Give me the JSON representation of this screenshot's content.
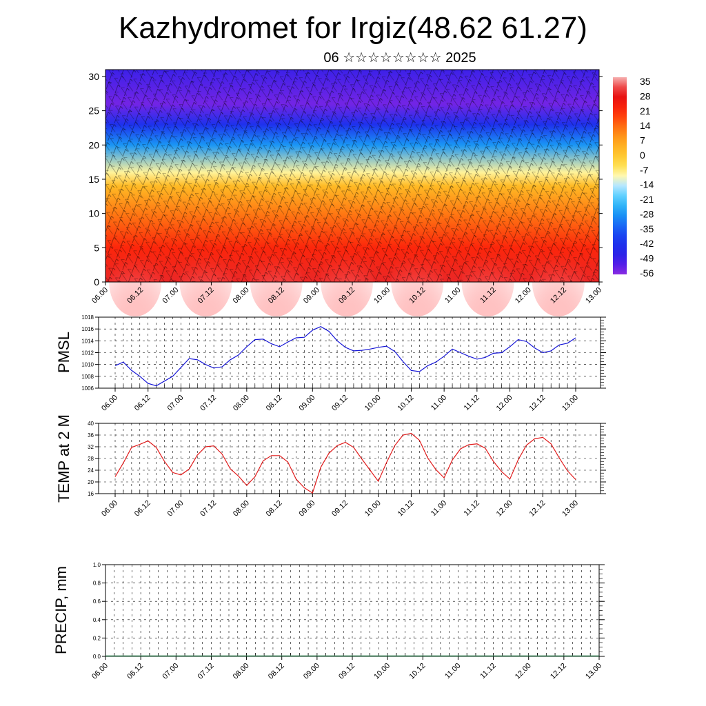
{
  "header": {
    "title": "Kazhydromet for Irgiz(48.62 61.27)",
    "subtitle": "06 ☆☆☆☆☆☆☆☆ 2025"
  },
  "chart_data": [
    {
      "type": "heatmap",
      "title": "",
      "xlabel": "",
      "ylabel": "",
      "x_ticks": [
        "06.00",
        "06.12",
        "07.00",
        "07.12",
        "08.00",
        "08.12",
        "09.00",
        "09.12",
        "10.00",
        "10.12",
        "11.00",
        "11.12",
        "12.00",
        "12.12",
        "13.00"
      ],
      "y_ticks": [
        0,
        5,
        10,
        15,
        20,
        25,
        30
      ],
      "ylim": [
        0,
        31
      ],
      "colorbar_labels": [
        "35",
        "28",
        "21",
        "14",
        "7",
        "0",
        "-7",
        "-14",
        "-21",
        "-28",
        "-35",
        "-42",
        "-49",
        "-56"
      ],
      "colorbar_range": [
        -60,
        38
      ],
      "temperature_profile": [
        {
          "level": 0,
          "value": 30
        },
        {
          "level": 5,
          "value": 22
        },
        {
          "level": 10,
          "value": 12
        },
        {
          "level": 14,
          "value": 2
        },
        {
          "level": 16,
          "value": -10
        },
        {
          "level": 20,
          "value": -30
        },
        {
          "level": 23,
          "value": -45
        },
        {
          "level": 26,
          "value": -58
        },
        {
          "level": 31,
          "value": -52
        }
      ],
      "overlay": "wind barbs"
    },
    {
      "type": "line",
      "ylabel": "PMSL",
      "ylim": [
        1006,
        1018
      ],
      "y_ticks": [
        1006,
        1008,
        1010,
        1012,
        1014,
        1016,
        1018
      ],
      "x_ticks": [
        "06.00",
        "06.12",
        "07.00",
        "07.12",
        "08.00",
        "08.12",
        "09.00",
        "09.12",
        "10.00",
        "10.12",
        "11.00",
        "11.12",
        "12.00",
        "12.12",
        "13.00"
      ],
      "color": "#1515d6",
      "values": [
        1009.8,
        1010.4,
        1009.0,
        1008.0,
        1006.8,
        1006.4,
        1007.2,
        1008.0,
        1009.5,
        1011.0,
        1010.8,
        1010.0,
        1009.4,
        1009.6,
        1010.8,
        1011.6,
        1013.0,
        1014.2,
        1014.3,
        1013.5,
        1013.0,
        1013.8,
        1014.5,
        1014.6,
        1015.8,
        1016.4,
        1015.6,
        1014.0,
        1012.9,
        1012.3,
        1012.4,
        1012.6,
        1012.9,
        1013.1,
        1012.2,
        1010.5,
        1009.0,
        1008.8,
        1009.8,
        1010.4,
        1011.4,
        1012.6,
        1012.0,
        1011.4,
        1010.9,
        1011.2,
        1011.9,
        1012.0,
        1013.0,
        1014.2,
        1013.9,
        1012.8,
        1012.0,
        1012.3,
        1013.3,
        1013.6,
        1014.5
      ]
    },
    {
      "type": "line",
      "ylabel": "TEMP at 2 M",
      "ylim": [
        16,
        40
      ],
      "y_ticks": [
        16,
        20,
        24,
        28,
        32,
        36,
        40
      ],
      "x_ticks": [
        "06.00",
        "06.12",
        "07.00",
        "07.12",
        "08.00",
        "08.12",
        "09.00",
        "09.12",
        "10.00",
        "10.12",
        "11.00",
        "11.12",
        "12.00",
        "12.12",
        "13.00"
      ],
      "color": "#e01b1b",
      "values": [
        21.8,
        26.5,
        31.8,
        32.8,
        34.0,
        31.8,
        27.0,
        23.2,
        22.4,
        24.4,
        29.2,
        32.0,
        32.3,
        29.5,
        24.5,
        22.0,
        18.8,
        21.8,
        27.2,
        29.0,
        29.0,
        26.8,
        21.0,
        18.0,
        16.2,
        25.0,
        29.8,
        32.4,
        33.5,
        31.8,
        27.8,
        24.0,
        20.2,
        26.6,
        32.4,
        36.0,
        36.6,
        34.2,
        28.2,
        24.2,
        21.4,
        27.5,
        31.3,
        32.7,
        33.0,
        31.5,
        27.0,
        23.5,
        21.0,
        27.5,
        32.5,
        34.7,
        35.2,
        33.0,
        28.2,
        23.8,
        20.8
      ]
    },
    {
      "type": "bar",
      "ylabel": "PRECIP, mm",
      "ylim": [
        0,
        1.0
      ],
      "y_ticks": [
        "0.0",
        "0.2",
        "0.4",
        "0.6",
        "0.8",
        "1.0"
      ],
      "x_ticks": [
        "06.00",
        "06.12",
        "07.00",
        "07.12",
        "08.00",
        "08.12",
        "09.00",
        "09.12",
        "10.00",
        "10.12",
        "11.00",
        "11.12",
        "12.00",
        "12.12",
        "13.00"
      ],
      "values": [
        0,
        0,
        0,
        0,
        0,
        0,
        0,
        0,
        0,
        0,
        0,
        0,
        0,
        0,
        0,
        0,
        0,
        0,
        0,
        0,
        0,
        0,
        0,
        0,
        0,
        0,
        0,
        0,
        0,
        0,
        0,
        0,
        0,
        0,
        0,
        0,
        0,
        0,
        0,
        0,
        0,
        0,
        0,
        0,
        0,
        0,
        0,
        0,
        0,
        0,
        0,
        0,
        0,
        0,
        0,
        0,
        0
      ]
    }
  ]
}
